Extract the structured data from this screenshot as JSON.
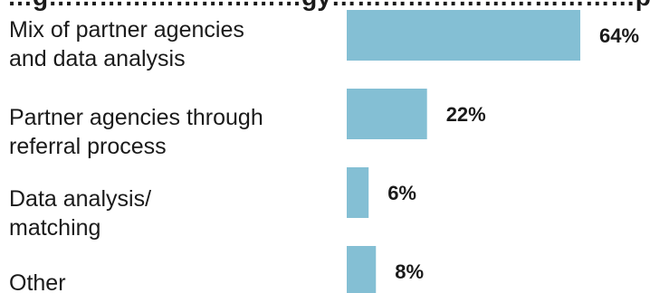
{
  "chart_data": {
    "type": "bar",
    "orientation": "horizontal",
    "title": "…g…………………………gy………………………………p…",
    "categories": [
      "Mix of partner agencies\nand data analysis",
      "Partner agencies through\nreferral process",
      "Data analysis/\nmatching",
      "Other"
    ],
    "values": [
      64,
      22,
      6,
      8
    ],
    "value_labels": [
      "64%",
      "22%",
      "6%",
      "8%"
    ],
    "xlim": [
      0,
      64
    ],
    "grid": false,
    "colors": {
      "bar": "#84bfd4",
      "text": "#1a1a1a"
    }
  }
}
